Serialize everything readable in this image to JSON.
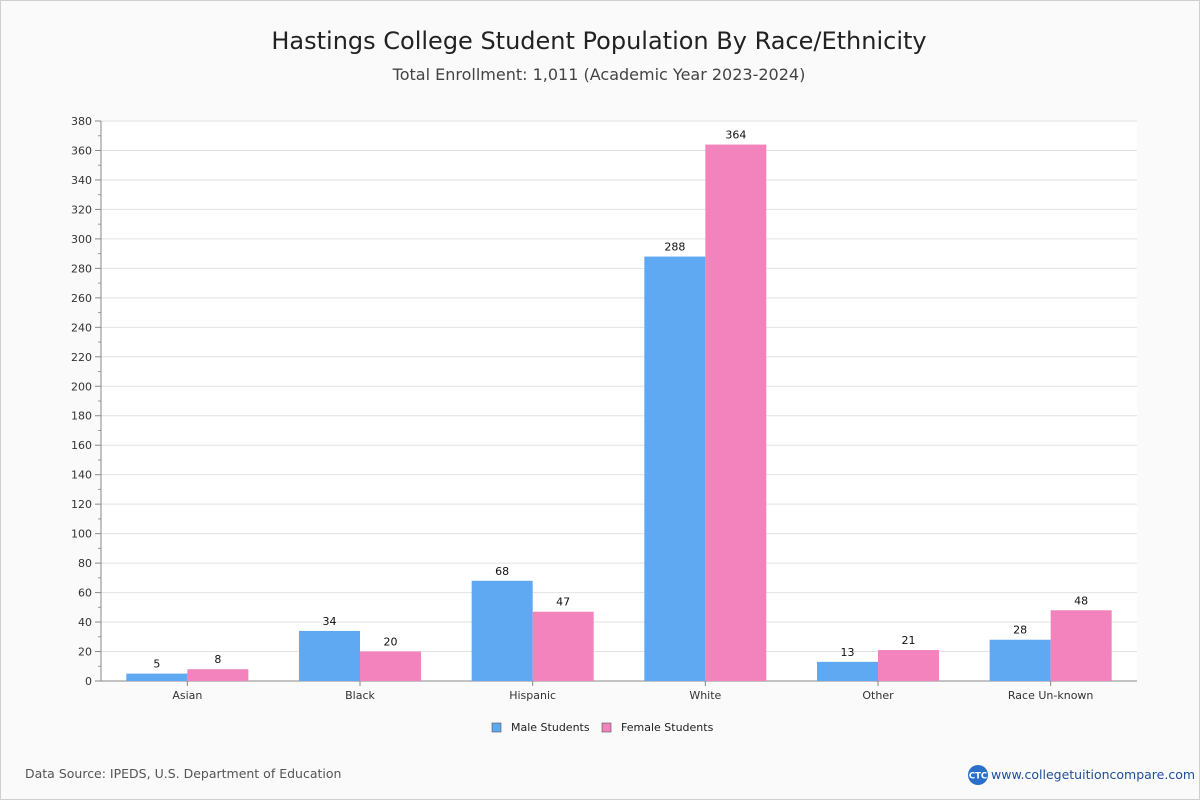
{
  "chart_data": {
    "type": "bar",
    "title": "Hastings College Student Population By Race/Ethnicity",
    "subtitle": "Total Enrollment: 1,011 (Academic Year 2023-2024)",
    "categories": [
      "Asian",
      "Black",
      "Hispanic",
      "White",
      "Other",
      "Race Un-known"
    ],
    "series": [
      {
        "name": "Male Students",
        "values": [
          5,
          34,
          68,
          288,
          13,
          28
        ],
        "color": "#5fa8f2"
      },
      {
        "name": "Female Students",
        "values": [
          8,
          20,
          47,
          364,
          21,
          48
        ],
        "color": "#f283bd"
      }
    ],
    "ylim": [
      0,
      380
    ],
    "yticks": [
      0,
      20,
      40,
      60,
      80,
      100,
      120,
      140,
      160,
      180,
      200,
      220,
      240,
      260,
      280,
      300,
      320,
      340,
      360,
      380
    ],
    "grid": true,
    "legend": "bottom-center"
  },
  "footer": {
    "source": "Data Source: IPEDS, U.S. Department of Education",
    "logo_text": "CTC",
    "website": "www.collegetuitioncompare.com"
  }
}
